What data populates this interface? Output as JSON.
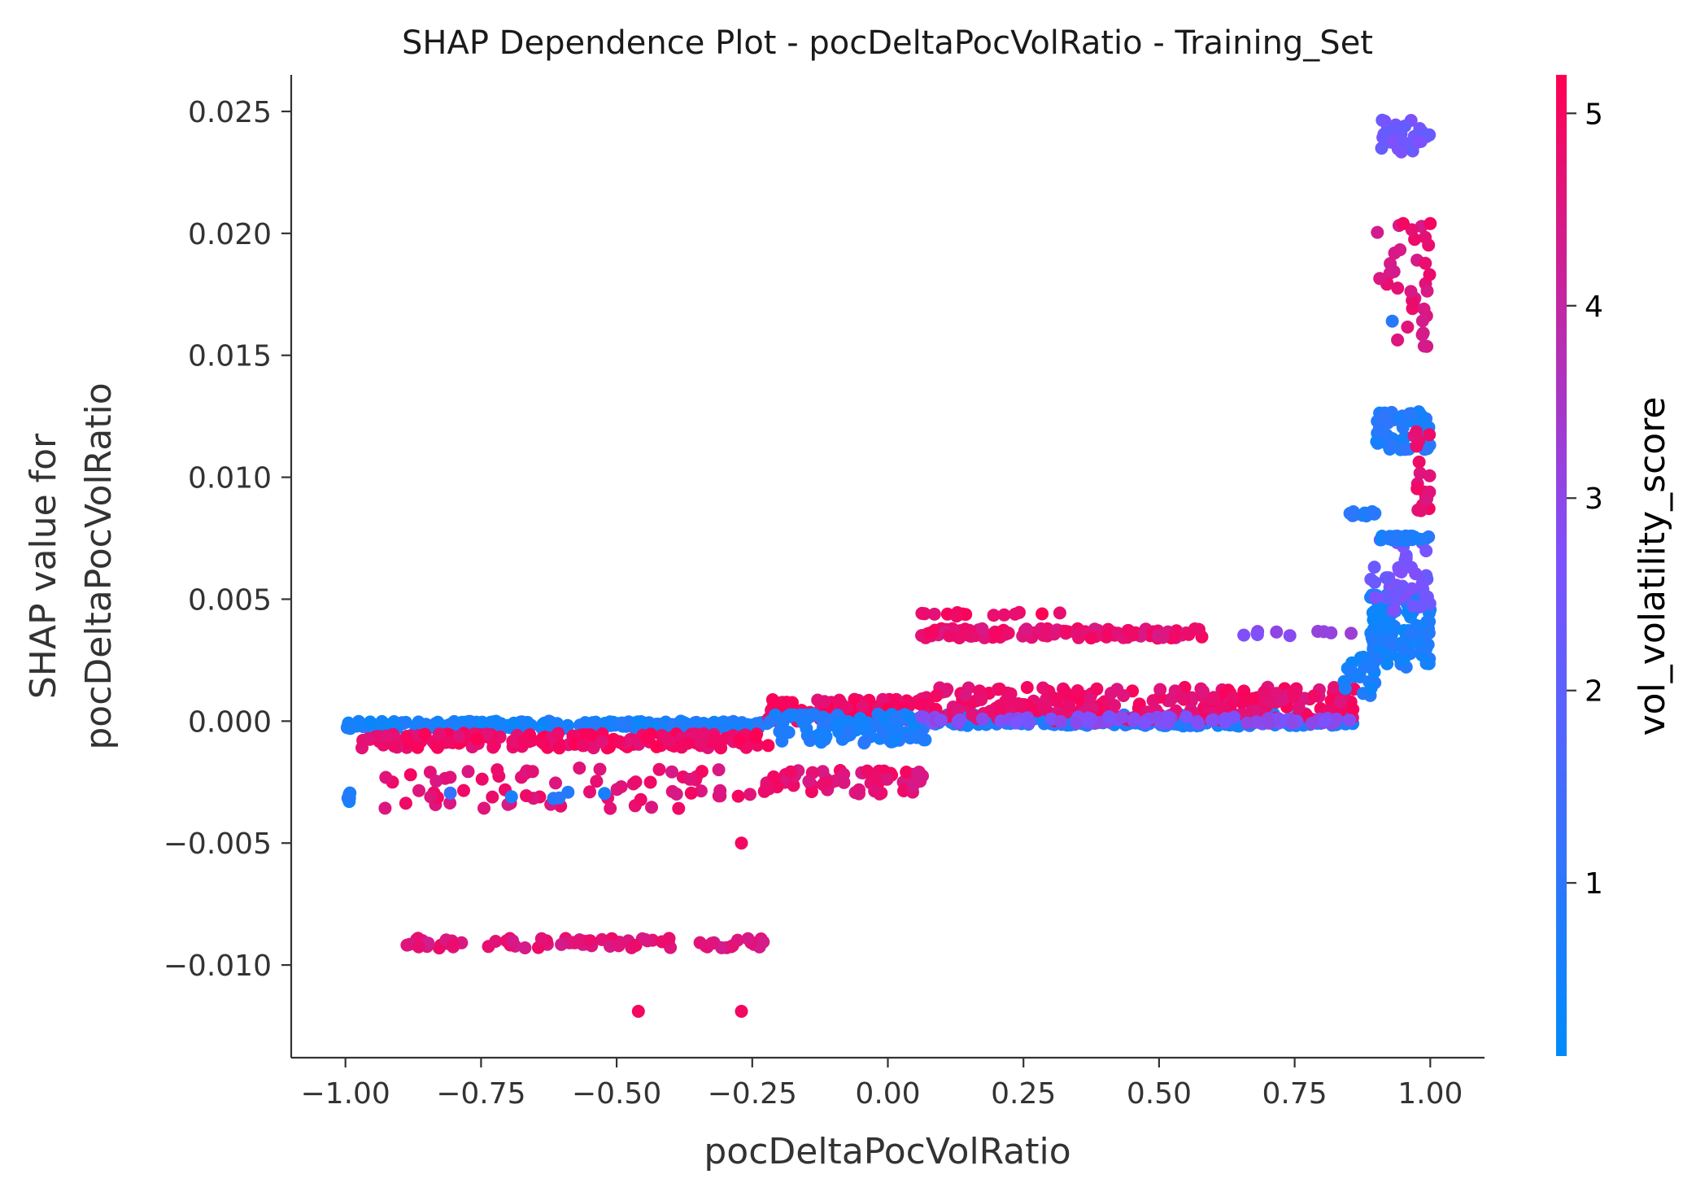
{
  "chart_data": {
    "type": "scatter",
    "title": "SHAP Dependence Plot - pocDeltaPocVolRatio - Training_Set",
    "xlabel": "pocDeltaPocVolRatio",
    "ylabel_lines": [
      "SHAP value for",
      "pocDeltaPocVolRatio"
    ],
    "xlim": [
      -1.1,
      1.1
    ],
    "ylim": [
      -0.0138,
      0.0265
    ],
    "x_ticks": [
      -1.0,
      -0.75,
      -0.5,
      -0.25,
      0.0,
      0.25,
      0.5,
      0.75,
      1.0
    ],
    "x_tick_labels": [
      "−1.00",
      "−0.75",
      "−0.50",
      "−0.25",
      "0.00",
      "0.25",
      "0.50",
      "0.75",
      "1.00"
    ],
    "y_ticks": [
      -0.01,
      -0.005,
      0.0,
      0.005,
      0.01,
      0.015,
      0.02,
      0.025
    ],
    "y_tick_labels": [
      "−0.010",
      "−0.005",
      "0.000",
      "0.005",
      "0.010",
      "0.015",
      "0.020",
      "0.025"
    ],
    "colorbar": {
      "label": "vol_volatility_score",
      "range": [
        0.1,
        5.2
      ],
      "ticks": [
        1,
        2,
        3,
        4,
        5
      ],
      "tick_labels": [
        "1",
        "2",
        "3",
        "4",
        "5"
      ],
      "colormap": [
        "#008bfb",
        "#7c52ff",
        "#ff0052"
      ]
    },
    "point_groups": [
      {
        "x": [
          -1.0,
          -0.22
        ],
        "y": [
          -0.0003,
          0.0
        ],
        "color_value": 0.6,
        "count": 260
      },
      {
        "x": [
          -0.97,
          -0.22
        ],
        "y": [
          -0.0011,
          -0.0005
        ],
        "color_value": 4.9,
        "count": 200
      },
      {
        "x": [
          -1.0,
          -0.99
        ],
        "y": [
          -0.0033,
          -0.0029
        ],
        "color_value": 0.6,
        "count": 6
      },
      {
        "x": [
          -0.93,
          -0.22
        ],
        "y": [
          -0.0036,
          -0.0019
        ],
        "color_value": 4.7,
        "count": 70
      },
      {
        "x": [
          -0.85,
          -0.5
        ],
        "y": [
          -0.0032,
          -0.0029
        ],
        "color_value": 0.9,
        "count": 6
      },
      {
        "x": [
          -0.9,
          -0.21
        ],
        "y": [
          -0.0093,
          -0.0089
        ],
        "color_value": 4.6,
        "count": 75
      },
      {
        "x": [
          -0.22,
          0.07
        ],
        "y": [
          0.0,
          0.0009
        ],
        "color_value": 4.9,
        "count": 120
      },
      {
        "x": [
          -0.22,
          0.07
        ],
        "y": [
          -0.0009,
          0.0003
        ],
        "color_value": 0.7,
        "count": 110
      },
      {
        "x": [
          -0.22,
          0.07
        ],
        "y": [
          -0.003,
          -0.002
        ],
        "color_value": 4.7,
        "count": 60
      },
      {
        "x": [
          0.06,
          0.86
        ],
        "y": [
          -0.0002,
          0.0003
        ],
        "color_value": 0.7,
        "count": 320
      },
      {
        "x": [
          0.06,
          0.86
        ],
        "y": [
          0.0,
          0.0014
        ],
        "color_value": 4.8,
        "count": 260
      },
      {
        "x": [
          0.06,
          0.86
        ],
        "y": [
          -0.0001,
          0.0002
        ],
        "color_value": 2.8,
        "count": 80
      },
      {
        "x": [
          0.06,
          0.58
        ],
        "y": [
          0.0034,
          0.0038
        ],
        "color_value": 4.7,
        "count": 120
      },
      {
        "x": [
          0.06,
          0.32
        ],
        "y": [
          0.0043,
          0.0045
        ],
        "color_value": 4.9,
        "count": 14
      },
      {
        "x": [
          0.65,
          0.86
        ],
        "y": [
          0.0035,
          0.0037
        ],
        "color_value": 3.0,
        "count": 10
      },
      {
        "x": [
          0.84,
          0.9
        ],
        "y": [
          0.001,
          0.0028
        ],
        "color_value": 0.6,
        "count": 25
      },
      {
        "x": [
          0.85,
          0.9
        ],
        "y": [
          0.0084,
          0.0086
        ],
        "color_value": 0.8,
        "count": 15
      },
      {
        "x": [
          0.89,
          1.0
        ],
        "y": [
          0.0022,
          0.0053
        ],
        "color_value": 0.6,
        "count": 120
      },
      {
        "x": [
          0.89,
          1.0
        ],
        "y": [
          0.0045,
          0.0075
        ],
        "color_value": 2.5,
        "count": 40
      },
      {
        "x": [
          0.9,
          1.0
        ],
        "y": [
          0.0074,
          0.0076
        ],
        "color_value": 0.7,
        "count": 30
      },
      {
        "x": [
          0.9,
          1.0
        ],
        "y": [
          0.0111,
          0.0127
        ],
        "color_value": 0.8,
        "count": 60
      },
      {
        "x": [
          0.97,
          1.0
        ],
        "y": [
          0.0086,
          0.0119
        ],
        "color_value": 4.7,
        "count": 20
      },
      {
        "x": [
          0.9,
          1.0
        ],
        "y": [
          0.0153,
          0.0205
        ],
        "color_value": 4.6,
        "count": 35
      },
      {
        "x": [
          0.9,
          1.0
        ],
        "y": [
          0.0233,
          0.0247
        ],
        "color_value": 2.4,
        "count": 35
      }
    ],
    "individual_points": [
      {
        "x": -0.27,
        "y": -0.005,
        "color_value": 5.0
      },
      {
        "x": -0.46,
        "y": -0.0119,
        "color_value": 5.0
      },
      {
        "x": -0.27,
        "y": -0.0119,
        "color_value": 5.0
      },
      {
        "x": 0.93,
        "y": 0.0164,
        "color_value": 0.9
      },
      {
        "x": -0.88,
        "y": -0.0022,
        "color_value": 5.0
      },
      {
        "x": 0.95,
        "y": 0.0204,
        "color_value": 5.0
      },
      {
        "x": 1.0,
        "y": 0.0204,
        "color_value": 5.0
      }
    ]
  }
}
